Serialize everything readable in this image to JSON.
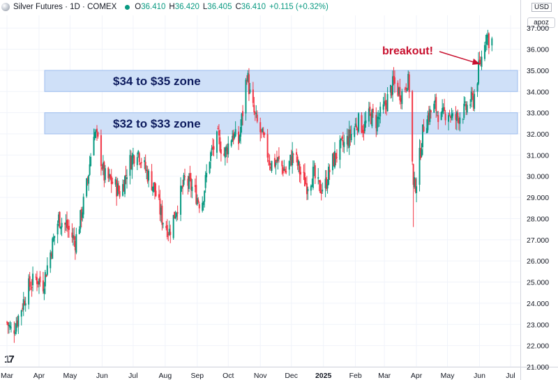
{
  "header": {
    "title": "Silver Futures · 1D · COMEX",
    "open_label": "O",
    "open_value": "36.410",
    "high_label": "H",
    "high_value": "36.420",
    "low_label": "L",
    "low_value": "36.405",
    "close_label": "C",
    "close_value": "36.410",
    "change": "+0.115 (+0.32%)"
  },
  "currency": "USD",
  "axis_control": "apoz",
  "logo_text": "17",
  "colors": {
    "up": "#089981",
    "down": "#f23645",
    "zone_fill": "#cfe0f8",
    "zone_border": "#9dbdee",
    "annotation": "#c8102e",
    "zone_text": "#0d1b5e"
  },
  "chart_data": {
    "type": "candlestick",
    "ylim": [
      21,
      37.6
    ],
    "y_ticks": [
      "37.000",
      "36.000",
      "35.000",
      "34.000",
      "33.000",
      "32.000",
      "31.000",
      "30.000",
      "29.000",
      "28.000",
      "27.000",
      "26.000",
      "25.000",
      "24.000",
      "23.000",
      "22.000",
      "21.000"
    ],
    "y_tick_values": [
      37,
      36,
      35,
      34,
      33,
      32,
      31,
      30,
      29,
      28,
      27,
      26,
      25,
      24,
      23,
      22,
      21
    ],
    "x_ticks": [
      {
        "label": "Mar",
        "day": 0
      },
      {
        "label": "Apr",
        "day": 31
      },
      {
        "label": "May",
        "day": 61
      },
      {
        "label": "Jun",
        "day": 92
      },
      {
        "label": "Jul",
        "day": 122
      },
      {
        "label": "Aug",
        "day": 153
      },
      {
        "label": "Sep",
        "day": 184
      },
      {
        "label": "Oct",
        "day": 214
      },
      {
        "label": "Nov",
        "day": 245
      },
      {
        "label": "Dec",
        "day": 275
      },
      {
        "label": "2025",
        "day": 306
      },
      {
        "label": "Feb",
        "day": 337
      },
      {
        "label": "Mar",
        "day": 365
      },
      {
        "label": "Apr",
        "day": 396
      },
      {
        "label": "May",
        "day": 426
      },
      {
        "label": "Jun",
        "day": 457
      },
      {
        "label": "Jul",
        "day": 487
      }
    ],
    "zones": [
      {
        "low": 34,
        "high": 35,
        "label": "$34 to $35 zone"
      },
      {
        "low": 32,
        "high": 33,
        "label": "$32 to $33 zone"
      }
    ],
    "annotation": {
      "text": "breakout!",
      "from_day": 424,
      "from_price": 36.1,
      "to_day": 460,
      "to_price": 35.3
    },
    "key_closes": [
      [
        0,
        23.1
      ],
      [
        5,
        22.6
      ],
      [
        12,
        23.5
      ],
      [
        20,
        24.7
      ],
      [
        28,
        25.2
      ],
      [
        35,
        24.9
      ],
      [
        42,
        26.4
      ],
      [
        50,
        28.0
      ],
      [
        58,
        27.6
      ],
      [
        66,
        26.9
      ],
      [
        72,
        28.2
      ],
      [
        78,
        29.8
      ],
      [
        84,
        32.2
      ],
      [
        88,
        31.6
      ],
      [
        94,
        30.0
      ],
      [
        102,
        29.7
      ],
      [
        110,
        29.2
      ],
      [
        118,
        30.6
      ],
      [
        126,
        31.3
      ],
      [
        133,
        30.4
      ],
      [
        142,
        29.5
      ],
      [
        150,
        28.0
      ],
      [
        157,
        27.4
      ],
      [
        164,
        28.5
      ],
      [
        172,
        29.8
      ],
      [
        180,
        29.4
      ],
      [
        188,
        28.6
      ],
      [
        196,
        30.9
      ],
      [
        204,
        31.8
      ],
      [
        210,
        31.0
      ],
      [
        218,
        32.0
      ],
      [
        224,
        31.6
      ],
      [
        229,
        33.4
      ],
      [
        232,
        34.9
      ],
      [
        236,
        33.5
      ],
      [
        241,
        32.6
      ],
      [
        248,
        31.7
      ],
      [
        255,
        30.6
      ],
      [
        262,
        30.7
      ],
      [
        270,
        30.2
      ],
      [
        277,
        31.1
      ],
      [
        284,
        30.1
      ],
      [
        290,
        29.6
      ],
      [
        296,
        30.1
      ],
      [
        302,
        29.4
      ],
      [
        308,
        29.6
      ],
      [
        314,
        30.6
      ],
      [
        320,
        31.2
      ],
      [
        326,
        31.5
      ],
      [
        332,
        31.9
      ],
      [
        339,
        32.6
      ],
      [
        345,
        32.3
      ],
      [
        351,
        32.9
      ],
      [
        357,
        32.6
      ],
      [
        363,
        33.0
      ],
      [
        369,
        33.8
      ],
      [
        374,
        34.4
      ],
      [
        379,
        34.0
      ],
      [
        383,
        33.9
      ],
      [
        387,
        34.6
      ],
      [
        389,
        34.2
      ],
      [
        391,
        31.8
      ],
      [
        393,
        29.4
      ],
      [
        396,
        29.8
      ],
      [
        399,
        30.9
      ],
      [
        403,
        32.4
      ],
      [
        408,
        32.9
      ],
      [
        414,
        33.3
      ],
      [
        420,
        32.7
      ],
      [
        426,
        33.2
      ],
      [
        432,
        32.6
      ],
      [
        438,
        32.9
      ],
      [
        443,
        33.1
      ],
      [
        447,
        33.5
      ],
      [
        451,
        33.6
      ],
      [
        454,
        34.4
      ],
      [
        456,
        35.0
      ],
      [
        459,
        35.6
      ],
      [
        461,
        36.3
      ],
      [
        463,
        36.7
      ],
      [
        465,
        36.6
      ],
      [
        467,
        36.3
      ],
      [
        469,
        36.41
      ]
    ]
  }
}
